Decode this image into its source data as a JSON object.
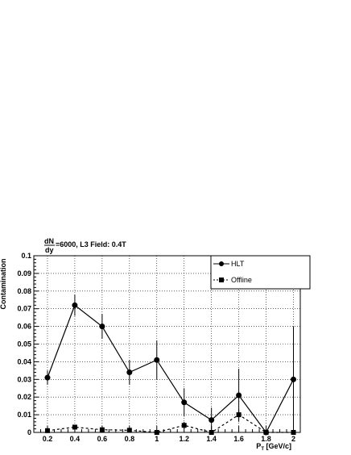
{
  "chart_data": {
    "type": "line",
    "title_numerator": "dN",
    "title_denominator": "dy",
    "title_rest": "=6000,   L3 Field: 0.4T",
    "ylabel": "Contamination",
    "xlabel_main": "P",
    "xlabel_sub": "T",
    "xlabel_unit": " [GeV/c]",
    "xlim": [
      0.1,
      2.05
    ],
    "ylim": [
      0,
      0.1
    ],
    "x_ticks": [
      "0.2",
      "0.4",
      "0.6",
      "0.8",
      "1",
      "1.2",
      "1.4",
      "1.6",
      "1.8",
      "2"
    ],
    "y_ticks": [
      "0",
      "0.01",
      "0.02",
      "0.03",
      "0.04",
      "0.05",
      "0.06",
      "0.07",
      "0.08",
      "0.09",
      "0.1"
    ],
    "grid": true,
    "legend": "top-right",
    "series": [
      {
        "name": "HLT",
        "marker": "circle",
        "line": "solid",
        "x": [
          0.2,
          0.4,
          0.6,
          0.8,
          1.0,
          1.2,
          1.4,
          1.6,
          1.8,
          2.0
        ],
        "y": [
          0.031,
          0.072,
          0.06,
          0.034,
          0.041,
          0.017,
          0.007,
          0.021,
          0.0,
          0.03
        ],
        "err": [
          0.004,
          0.006,
          0.007,
          0.007,
          0.011,
          0.008,
          0.007,
          0.015,
          0.0,
          0.03
        ]
      },
      {
        "name": "Offline",
        "marker": "square",
        "line": "dashed",
        "x": [
          0.2,
          0.4,
          0.6,
          0.8,
          1.0,
          1.2,
          1.4,
          1.6,
          1.8,
          2.0
        ],
        "y": [
          0.001,
          0.003,
          0.0015,
          0.0012,
          0.0,
          0.004,
          0.0,
          0.01,
          0.0,
          0.0
        ],
        "err": [
          0.0,
          0.0,
          0.0,
          0.0,
          0.0,
          0.002,
          0.0,
          0.003,
          0.0,
          0.0
        ]
      }
    ]
  }
}
